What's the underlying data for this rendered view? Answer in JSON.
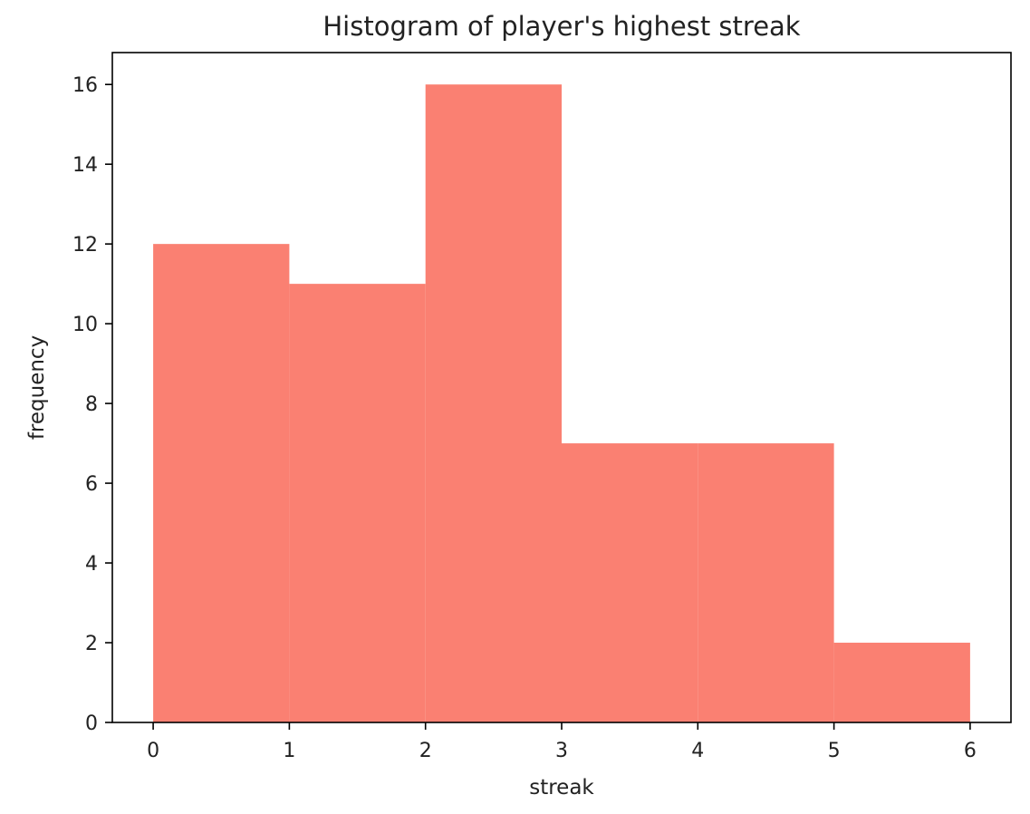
{
  "chart_data": {
    "type": "bar",
    "variant": "histogram",
    "title": "Histogram of player's highest streak",
    "xlabel": "streak",
    "ylabel": "frequency",
    "bins": [
      {
        "start": 0,
        "end": 1,
        "value": 12
      },
      {
        "start": 1,
        "end": 2,
        "value": 11
      },
      {
        "start": 2,
        "end": 3,
        "value": 16
      },
      {
        "start": 3,
        "end": 4,
        "value": 7
      },
      {
        "start": 4,
        "end": 5,
        "value": 7
      },
      {
        "start": 5,
        "end": 6,
        "value": 2
      }
    ],
    "xlim": [
      -0.3,
      6.3
    ],
    "ylim": [
      0,
      16.8
    ],
    "xticks": [
      0,
      1,
      2,
      3,
      4,
      5,
      6
    ],
    "yticks": [
      0,
      2,
      4,
      6,
      8,
      10,
      12,
      14,
      16
    ],
    "grid": false,
    "legend": false,
    "colors": {
      "bar": "#fa8072",
      "axes": "#000000",
      "text": "#222222"
    }
  }
}
